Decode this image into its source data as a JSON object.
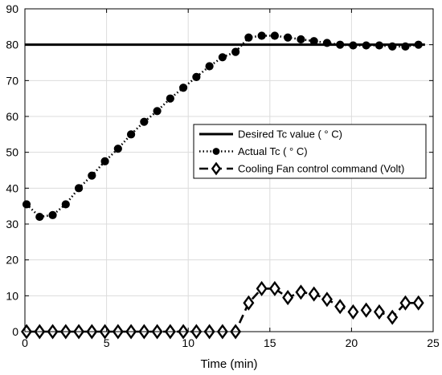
{
  "chart_data": {
    "type": "line",
    "xlabel": "Time (min)",
    "ylabel": "",
    "xlim": [
      0,
      25
    ],
    "ylim": [
      0,
      90
    ],
    "xticks": [
      0,
      5,
      10,
      15,
      20,
      25
    ],
    "yticks": [
      0,
      10,
      20,
      30,
      40,
      50,
      60,
      70,
      80,
      90
    ],
    "grid": true,
    "legend_position": "center-right",
    "series": [
      {
        "name": "Desired Tc value ( ° C)",
        "style": "solid",
        "marker": "none",
        "color": "#000000",
        "x": [
          0,
          24.5
        ],
        "y": [
          80,
          80
        ]
      },
      {
        "name": "Actual Tc ( ° C)",
        "style": "dotted",
        "marker": "circle",
        "color": "#000000",
        "x": [
          0.1,
          0.9,
          1.7,
          2.5,
          3.3,
          4.1,
          4.9,
          5.7,
          6.5,
          7.3,
          8.1,
          8.9,
          9.7,
          10.5,
          11.3,
          12.1,
          12.9,
          13.7,
          14.5,
          15.3,
          16.1,
          16.9,
          17.7,
          18.5,
          19.3,
          20.1,
          20.9,
          21.7,
          22.5,
          23.3,
          24.1
        ],
        "y": [
          35.5,
          32.0,
          32.5,
          35.5,
          40.0,
          43.5,
          47.5,
          51.0,
          55.0,
          58.5,
          61.5,
          65.0,
          68.0,
          71.0,
          74.0,
          76.5,
          78.0,
          82.0,
          82.5,
          82.5,
          82.0,
          81.5,
          81.0,
          80.5,
          80.0,
          79.8,
          79.8,
          79.8,
          79.5,
          79.5,
          80.0
        ]
      },
      {
        "name": "Cooling Fan control command (Volt)",
        "style": "dashed",
        "marker": "diamond",
        "color": "#000000",
        "x": [
          0.1,
          0.9,
          1.7,
          2.5,
          3.3,
          4.1,
          4.9,
          5.7,
          6.5,
          7.3,
          8.1,
          8.9,
          9.7,
          10.5,
          11.3,
          12.1,
          12.9,
          13.7,
          14.5,
          15.3,
          16.1,
          16.9,
          17.7,
          18.5,
          19.3,
          20.1,
          20.9,
          21.7,
          22.5,
          23.3,
          24.1
        ],
        "y": [
          0,
          0,
          0,
          0,
          0,
          0,
          0,
          0,
          0,
          0,
          0,
          0,
          0,
          0,
          0,
          0,
          0,
          8.0,
          12.0,
          12.0,
          9.5,
          11.0,
          10.5,
          9.0,
          7.0,
          5.5,
          6.0,
          5.5,
          4.0,
          8.0,
          8.0
        ]
      }
    ]
  }
}
